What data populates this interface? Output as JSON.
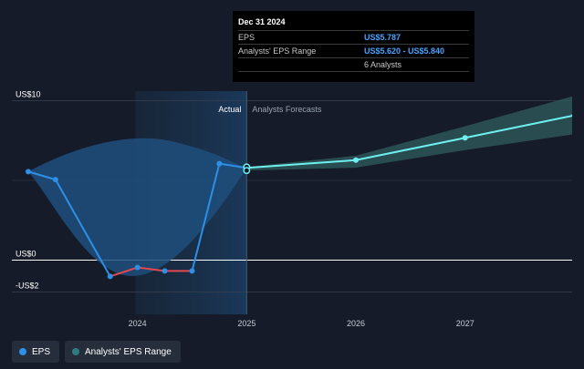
{
  "chart_data": {
    "type": "line",
    "y_ticks": [
      {
        "value": 10,
        "label": "US$10"
      },
      {
        "value": 0,
        "label": "US$0"
      },
      {
        "value": -2,
        "label": "-US$2"
      }
    ],
    "x_ticks": [
      {
        "value": 2024.0,
        "label": "2024"
      },
      {
        "value": 2025.0,
        "label": "2025"
      },
      {
        "value": 2026.0,
        "label": "2026"
      },
      {
        "value": 2027.0,
        "label": "2027"
      }
    ],
    "xlim": [
      2022.85,
      2027.98
    ],
    "ylim": [
      -3.4,
      10.6
    ],
    "region_labels": {
      "actual": "Actual",
      "forecast": "Analysts Forecasts"
    },
    "divider_x": 2025.0,
    "highlight_start": 2023.98,
    "eps_actual": [
      {
        "x": 2023.0,
        "y": 5.55
      },
      {
        "x": 2023.25,
        "y": 5.05
      },
      {
        "x": 2023.75,
        "y": -1.02
      },
      {
        "x": 2024.0,
        "y": -0.46
      },
      {
        "x": 2024.25,
        "y": -0.68
      },
      {
        "x": 2024.5,
        "y": -0.68
      },
      {
        "x": 2024.75,
        "y": 6.05
      },
      {
        "x": 2025.0,
        "y": 5.787
      }
    ],
    "eps_forecast": [
      {
        "x": 2025.0,
        "y": 5.787
      },
      {
        "x": 2026.0,
        "y": 6.27
      },
      {
        "x": 2027.0,
        "y": 7.67
      },
      {
        "x": 2028.0,
        "y": 9.08
      }
    ],
    "forecast_range": [
      {
        "x": 2025.0,
        "low": 5.62,
        "high": 5.84
      },
      {
        "x": 2026.0,
        "low": 5.8,
        "high": 6.55
      },
      {
        "x": 2027.0,
        "low": 6.9,
        "high": 8.4
      },
      {
        "x": 2028.0,
        "low": 7.9,
        "high": 10.3
      }
    ],
    "colors": {
      "eps": "#2d8fe6",
      "eps_negative": "#e3474f",
      "forecast_line": "#6ff0f0",
      "forecast_band": "#2f5d5e",
      "area": "#1f4f7d"
    }
  },
  "tooltip": {
    "date": "Dec 31 2024",
    "rows": [
      {
        "label": "EPS",
        "value": "US$5.787"
      },
      {
        "label": "Analysts' EPS Range",
        "value": "US$5.620 - US$5.840"
      },
      {
        "label": "",
        "value": "6 Analysts"
      }
    ]
  },
  "legend": [
    {
      "label": "EPS",
      "color": "#2d8fe6"
    },
    {
      "label": "Analysts' EPS Range",
      "color": "#2f7c80"
    }
  ]
}
